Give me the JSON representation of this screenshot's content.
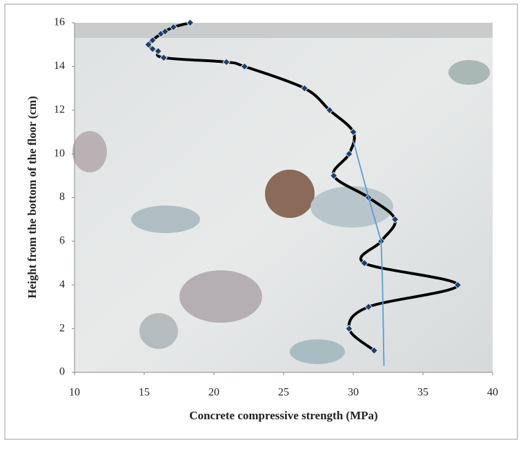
{
  "chart_data": {
    "type": "line",
    "smooth": true,
    "xlabel": "Concrete compressive strength (MPa)",
    "ylabel": "Height from the bottom of the floor (cm)",
    "xlim": [
      10,
      40
    ],
    "xticks": [
      10,
      15,
      20,
      25,
      30,
      35,
      40
    ],
    "ylim": [
      0,
      16
    ],
    "yticks": [
      0,
      2,
      4,
      6,
      8,
      10,
      12,
      14,
      16
    ],
    "grid": false,
    "series": [
      {
        "color": "#000000",
        "marker": "diamond",
        "smooth": true,
        "x": [
          31.5,
          29.7,
          31.1,
          37.5,
          30.8,
          32.0,
          33.0,
          31.1,
          28.6,
          29.7,
          30.0,
          28.3,
          26.5,
          22.2,
          20.9,
          16.4,
          16.0,
          15.6,
          15.3,
          15.6,
          16.2,
          16.5,
          17.1,
          18.3
        ],
        "values": [
          1,
          2,
          3,
          4,
          5,
          6,
          7,
          8,
          9,
          10,
          11,
          12,
          13,
          14,
          14.2,
          14.4,
          14.7,
          14.8,
          15.0,
          15.2,
          15.5,
          15.6,
          15.8,
          16.0
        ]
      },
      {
        "color": "#5b9bd5",
        "smooth": false,
        "x": [
          30.0,
          31.1,
          32.0,
          32.1,
          32.2
        ],
        "values": [
          10.6,
          8,
          6,
          4,
          0.3
        ]
      }
    ]
  }
}
